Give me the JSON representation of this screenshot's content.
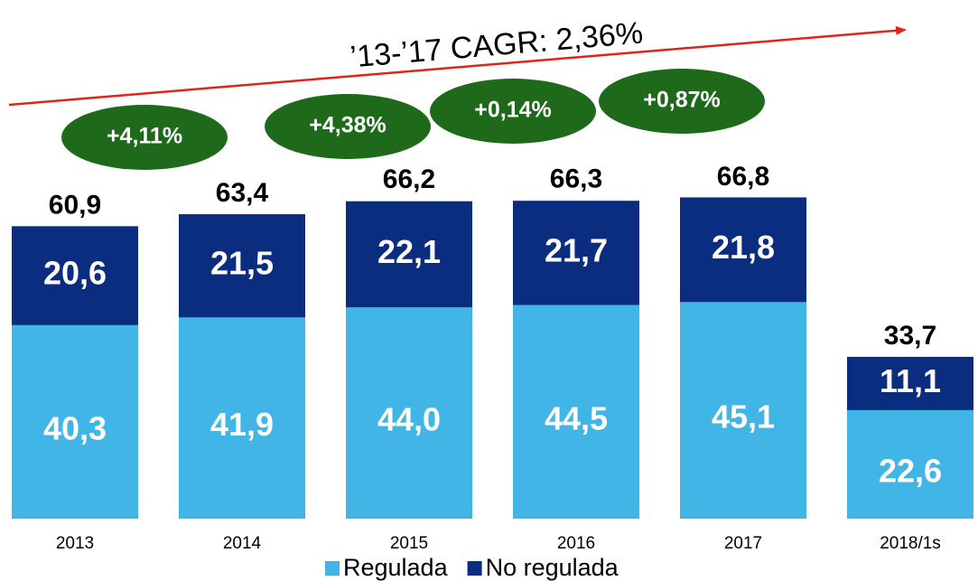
{
  "chart_data": {
    "type": "stacked_bar",
    "categories": [
      "2013",
      "2014",
      "2015",
      "2016",
      "2017",
      "2018/1s"
    ],
    "series": [
      {
        "name": "Regulada",
        "color": "#41b6e6",
        "values": [
          40.3,
          41.9,
          44.0,
          44.5,
          45.1,
          22.6
        ],
        "value_labels": [
          "40,3",
          "41,9",
          "44,0",
          "44,5",
          "45,1",
          "22,6"
        ]
      },
      {
        "name": "No regulada",
        "color": "#0b2d7f",
        "values": [
          20.6,
          21.5,
          22.1,
          21.7,
          21.8,
          11.1
        ],
        "value_labels": [
          "20,6",
          "21,5",
          "22,1",
          "21,7",
          "21,8",
          "11,1"
        ]
      }
    ],
    "totals": [
      60.9,
      63.4,
      66.2,
      66.3,
      66.8,
      33.7
    ],
    "total_labels": [
      "60,9",
      "63,4",
      "66,2",
      "66,3",
      "66,8",
      "33,7"
    ],
    "growth_labels": [
      "+4,11%",
      "+4,38%",
      "+0,14%",
      "+0,87%"
    ],
    "cagr_label": "’13-’17 CAGR: 2,36%",
    "growth_color": "#1e6a1a",
    "trend_color": "#e0241c"
  }
}
